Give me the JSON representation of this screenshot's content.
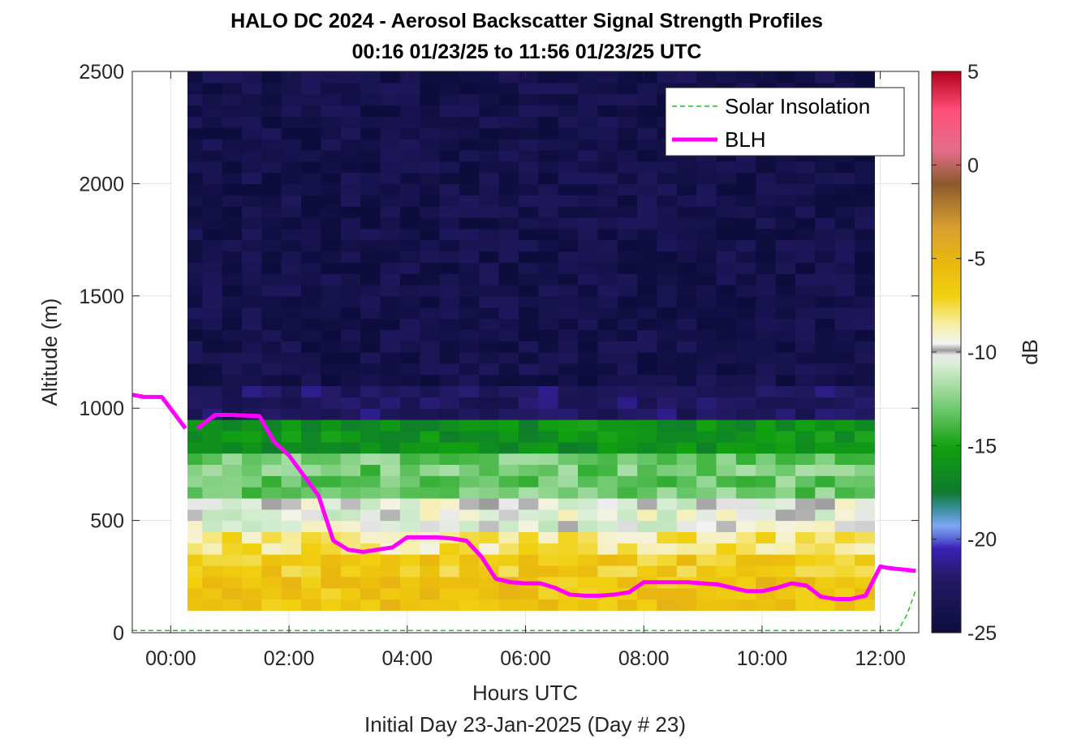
{
  "chart_data": {
    "type": "heatmap",
    "title": "HALO DC 2024 - Aerosol Backscatter Signal Strength Profiles",
    "subtitle": "00:16 01/23/25 to 11:56 01/23/25  UTC",
    "xlabel": "Hours UTC",
    "xlabel2": "Initial Day 23-Jan-2025 (Day # 23)",
    "ylabel": "Altitude (m)",
    "xlim": [
      -0.65,
      12.65
    ],
    "ylim": [
      0,
      2500
    ],
    "x_ticks": [
      0,
      2,
      4,
      6,
      8,
      10,
      12
    ],
    "x_tick_labels": [
      "00:00",
      "02:00",
      "04:00",
      "06:00",
      "08:00",
      "10:00",
      "12:00"
    ],
    "y_ticks": [
      0,
      500,
      1000,
      1500,
      2000,
      2500
    ],
    "y_tick_labels": [
      "0",
      "500",
      "1000",
      "1500",
      "2000",
      "2500"
    ],
    "colorbar": {
      "label": "dB",
      "range": [
        -25,
        5
      ],
      "ticks": [
        5,
        0,
        -5,
        -10,
        -15,
        -20,
        -25
      ],
      "tick_labels": [
        "5",
        "0",
        "-5",
        "-10",
        "-15",
        "-20",
        "-25"
      ]
    },
    "grid": true,
    "legend_position": "top-right",
    "heatmap": {
      "x_start": 0.2,
      "x_end": 11.9,
      "columns": 35,
      "y_start": 100,
      "y_end": 2500,
      "layer_tops_m": [
        220,
        330,
        420,
        580,
        760,
        950,
        1080
      ],
      "layer_values_dB": [
        -6,
        -6.5,
        -8,
        -10,
        -13,
        -16,
        -22.5
      ],
      "upper_value_dB": -24
    },
    "series": [
      {
        "name": "BLH",
        "color": "#ff00ff",
        "segments": [
          {
            "x": [
              -0.65,
              -0.45,
              -0.15,
              0.25
            ],
            "y": [
              1060,
              1050,
              1050,
              910
            ]
          },
          {
            "x": [
              0.45,
              0.75,
              1.0,
              1.5,
              1.75,
              2.0,
              2.25,
              2.5,
              2.75,
              3.0,
              3.25,
              3.5,
              3.75,
              4.0,
              4.25,
              4.5,
              4.75,
              5.0,
              5.25,
              5.5,
              5.75,
              6.0,
              6.25,
              6.5,
              6.75,
              7.0,
              7.25,
              7.5,
              7.75,
              8.0,
              8.25,
              8.5,
              8.75,
              9.0,
              9.25,
              9.5,
              9.75,
              10.0,
              10.25,
              10.5,
              10.75,
              11.0,
              11.25,
              11.5,
              11.75,
              12.0,
              12.1,
              12.25,
              12.45,
              12.6
            ],
            "y": [
              910,
              970,
              970,
              965,
              850,
              790,
              700,
              610,
              410,
              370,
              360,
              370,
              380,
              425,
              425,
              425,
              420,
              410,
              340,
              240,
              225,
              220,
              220,
              200,
              170,
              165,
              165,
              170,
              180,
              225,
              225,
              225,
              225,
              220,
              215,
              200,
              185,
              185,
              200,
              220,
              210,
              160,
              150,
              150,
              165,
              295,
              290,
              285,
              280,
              275
            ]
          }
        ]
      },
      {
        "name": "Solar Insolation",
        "color": "#1fc41f",
        "style": "dashed",
        "x": [
          -0.65,
          12.3,
          12.45,
          12.6
        ],
        "y": [
          10,
          10,
          80,
          190
        ]
      }
    ]
  }
}
